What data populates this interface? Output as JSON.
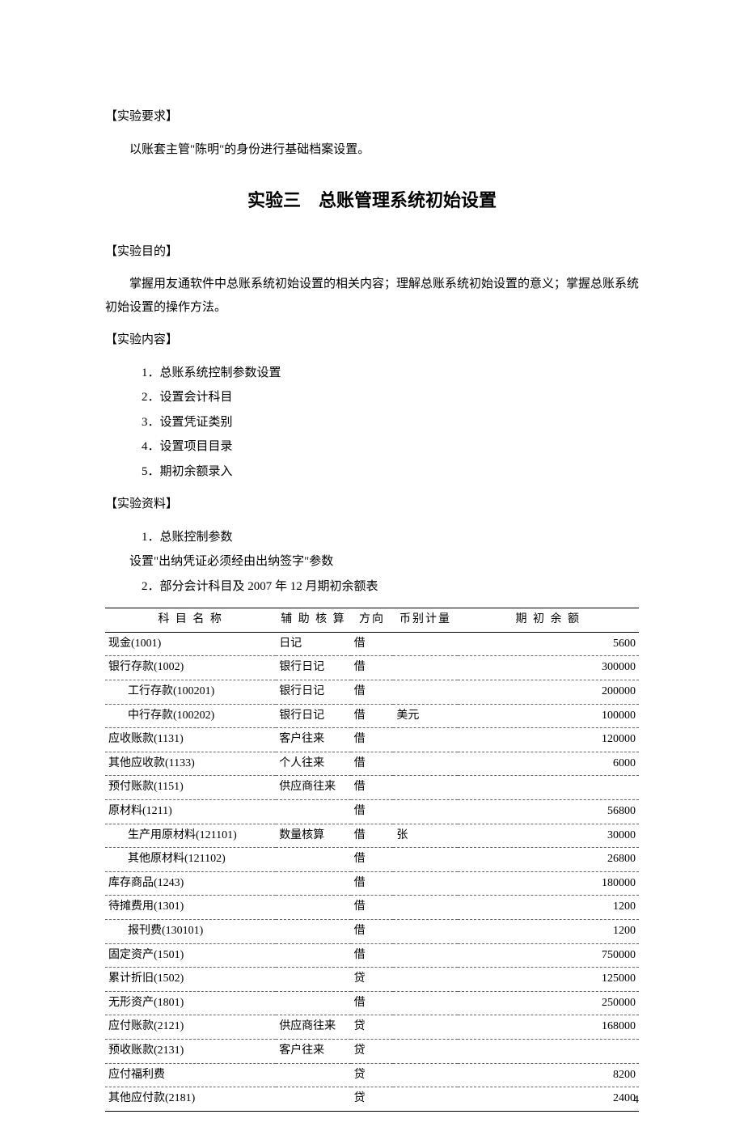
{
  "req_heading": "【实验要求】",
  "req_text": "以账套主管\"陈明\"的身份进行基础档案设置。",
  "title": "实验三　总账管理系统初始设置",
  "goal_heading": "【实验目的】",
  "goal_text": "掌握用友通软件中总账系统初始设置的相关内容；理解总账系统初始设置的意义；掌握总账系统初始设置的操作方法。",
  "content_heading": "【实验内容】",
  "content_items": [
    "1．总账系统控制参数设置",
    "2．设置会计科目",
    "3．设置凭证类别",
    "4．设置项目目录",
    "5．期初余额录入"
  ],
  "material_heading": "【实验资料】",
  "material_lines": [
    "1．总账控制参数",
    "设置\"出纳凭证必须经由出纳签字\"参数",
    "2．部分会计科目及 2007 年 12 月期初余额表"
  ],
  "table": {
    "headers": [
      "科 目 名 称",
      "辅 助 核 算",
      "方向",
      "币别计量",
      "期 初 余 额"
    ],
    "rows": [
      {
        "name": "现金(1001)",
        "aux": "日记",
        "dir": "借",
        "cur": "",
        "bal": "5600",
        "indent": 0
      },
      {
        "name": "银行存款(1002)",
        "aux": "银行日记",
        "dir": "借",
        "cur": "",
        "bal": "300000",
        "indent": 0
      },
      {
        "name": "工行存款(100201)",
        "aux": "银行日记",
        "dir": "借",
        "cur": "",
        "bal": "200000",
        "indent": 1
      },
      {
        "name": "中行存款(100202)",
        "aux": "银行日记",
        "dir": "借",
        "cur": "美元",
        "bal": "100000",
        "indent": 1
      },
      {
        "name": "应收账款(1131)",
        "aux": "客户往来",
        "dir": "借",
        "cur": "",
        "bal": "120000",
        "indent": 0
      },
      {
        "name": "其他应收款(1133)",
        "aux": "个人往来",
        "dir": "借",
        "cur": "",
        "bal": "6000",
        "indent": 0
      },
      {
        "name": "预付账款(1151)",
        "aux": "供应商往来",
        "dir": "借",
        "cur": "",
        "bal": "",
        "indent": 0
      },
      {
        "name": "原材料(1211)",
        "aux": "",
        "dir": "借",
        "cur": "",
        "bal": "56800",
        "indent": 0
      },
      {
        "name": "生产用原材料(121101)",
        "aux": "数量核算",
        "dir": "借",
        "cur": "张",
        "bal": "30000",
        "indent": 1
      },
      {
        "name": "其他原材料(121102)",
        "aux": "",
        "dir": "借",
        "cur": "",
        "bal": "26800",
        "indent": 1
      },
      {
        "name": "库存商品(1243)",
        "aux": "",
        "dir": "借",
        "cur": "",
        "bal": "180000",
        "indent": 0
      },
      {
        "name": "待摊费用(1301)",
        "aux": "",
        "dir": "借",
        "cur": "",
        "bal": "1200",
        "indent": 0
      },
      {
        "name": "报刊费(130101)",
        "aux": "",
        "dir": "借",
        "cur": "",
        "bal": "1200",
        "indent": 1
      },
      {
        "name": "固定资产(1501)",
        "aux": "",
        "dir": "借",
        "cur": "",
        "bal": "750000",
        "indent": 0
      },
      {
        "name": "累计折旧(1502)",
        "aux": "",
        "dir": "贷",
        "cur": "",
        "bal": "125000",
        "indent": 0
      },
      {
        "name": "无形资产(1801)",
        "aux": "",
        "dir": "借",
        "cur": "",
        "bal": "250000",
        "indent": 0
      },
      {
        "name": "应付账款(2121)",
        "aux": "供应商往来",
        "dir": "贷",
        "cur": "",
        "bal": "168000",
        "indent": 0
      },
      {
        "name": "预收账款(2131)",
        "aux": "客户往来",
        "dir": "贷",
        "cur": "",
        "bal": "",
        "indent": 0
      },
      {
        "name": "应付福利费",
        "aux": "",
        "dir": "贷",
        "cur": "",
        "bal": "8200",
        "indent": 0
      },
      {
        "name": "其他应付款(2181)",
        "aux": "",
        "dir": "贷",
        "cur": "",
        "bal": "2400",
        "indent": 0
      }
    ]
  },
  "page_number": "4"
}
